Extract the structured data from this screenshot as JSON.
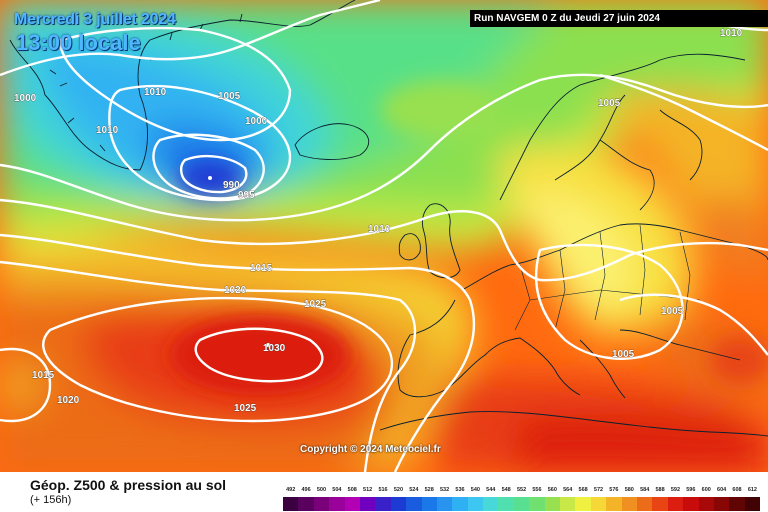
{
  "header": {
    "date_title": "Mercredi 3 juillet 2024",
    "time_title": "13:00 locale",
    "run_info": "Run NAVGEM 0 Z du Jeudi 27 juin 2024"
  },
  "copyright": "Copyright © 2024 Meteociel.fr",
  "footer": {
    "title": "Géop. Z500 & pression au sol",
    "subtitle": "(+ 156h)"
  },
  "colorscale": {
    "ticks": [
      "492",
      "496",
      "500",
      "504",
      "508",
      "512",
      "516",
      "520",
      "524",
      "528",
      "532",
      "536",
      "540",
      "544",
      "548",
      "552",
      "556",
      "560",
      "564",
      "568",
      "572",
      "576",
      "580",
      "584",
      "588",
      "592",
      "596",
      "600",
      "604",
      "608",
      "612"
    ],
    "colors": [
      "#3a0040",
      "#5a005f",
      "#7a007a",
      "#9a009a",
      "#b400b4",
      "#7000c0",
      "#3a20c8",
      "#1e3ad4",
      "#1a5ce0",
      "#1a78e8",
      "#2894f0",
      "#30b0f4",
      "#3cc6f0",
      "#48d8d8",
      "#50e0b0",
      "#58e090",
      "#70e070",
      "#98e050",
      "#c8e848",
      "#f0f040",
      "#f4d838",
      "#f4b428",
      "#f09020",
      "#ec6c18",
      "#e84414",
      "#dc1e10",
      "#c80c0c",
      "#a80808",
      "#880606",
      "#600404",
      "#400202"
    ]
  },
  "map": {
    "pressure_labels": [
      "1010",
      "1000",
      "1005",
      "1010",
      "1000",
      "990",
      "995",
      "1010",
      "1015",
      "1020",
      "1025",
      "1030",
      "1025",
      "1015",
      "1020",
      "1005",
      "1010",
      "1005",
      "1005"
    ],
    "icons": {
      "low_center": "low-pressure-center",
      "high_center": "high-pressure-center"
    }
  }
}
